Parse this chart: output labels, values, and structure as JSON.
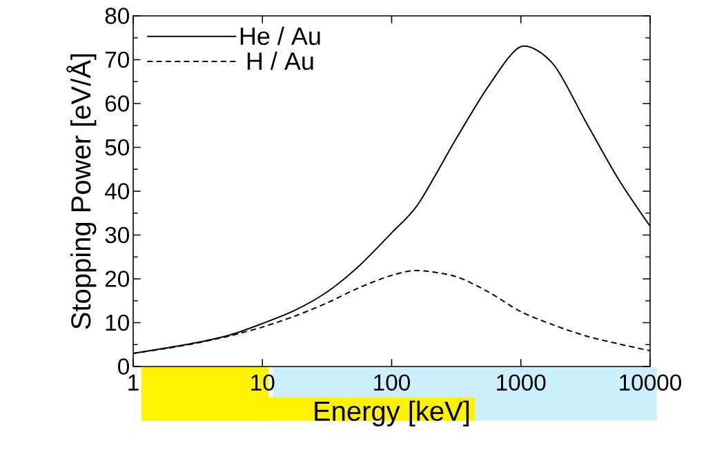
{
  "chart_data": {
    "type": "line",
    "xlabel": "Energy [keV]",
    "ylabel": "Stopping Power [eV/Å]",
    "log": "x",
    "xlim": [
      1,
      10000
    ],
    "xticks": [
      1,
      10,
      100,
      1000,
      10000
    ],
    "ylim": [
      0,
      80
    ],
    "yticks": [
      0,
      10,
      20,
      30,
      40,
      50,
      60,
      70,
      80
    ],
    "legend": "top left",
    "grid": false,
    "marker": "none",
    "x": [
      1,
      1.78,
      3.16,
      5.62,
      10,
      17.8,
      31.6,
      56.2,
      100,
      160,
      316,
      562,
      1000,
      1780,
      3160,
      5620,
      10000
    ],
    "series": [
      {
        "name": "He / Au",
        "color": "#000000",
        "line_style": "solid",
        "values": [
          3.0,
          4.2,
          5.5,
          7.2,
          9.8,
          12.8,
          17,
          23,
          30.5,
          37,
          52,
          64,
          73,
          69,
          56,
          43,
          32
        ]
      },
      {
        "name": "H / Au",
        "color": "#000000",
        "line_style": "dashed",
        "values": [
          3.0,
          4.1,
          5.4,
          7.0,
          9.0,
          11.5,
          14.5,
          18,
          20.8,
          21.9,
          20.5,
          17,
          12.5,
          9.5,
          7,
          5.2,
          3.6
        ]
      }
    ]
  }
}
